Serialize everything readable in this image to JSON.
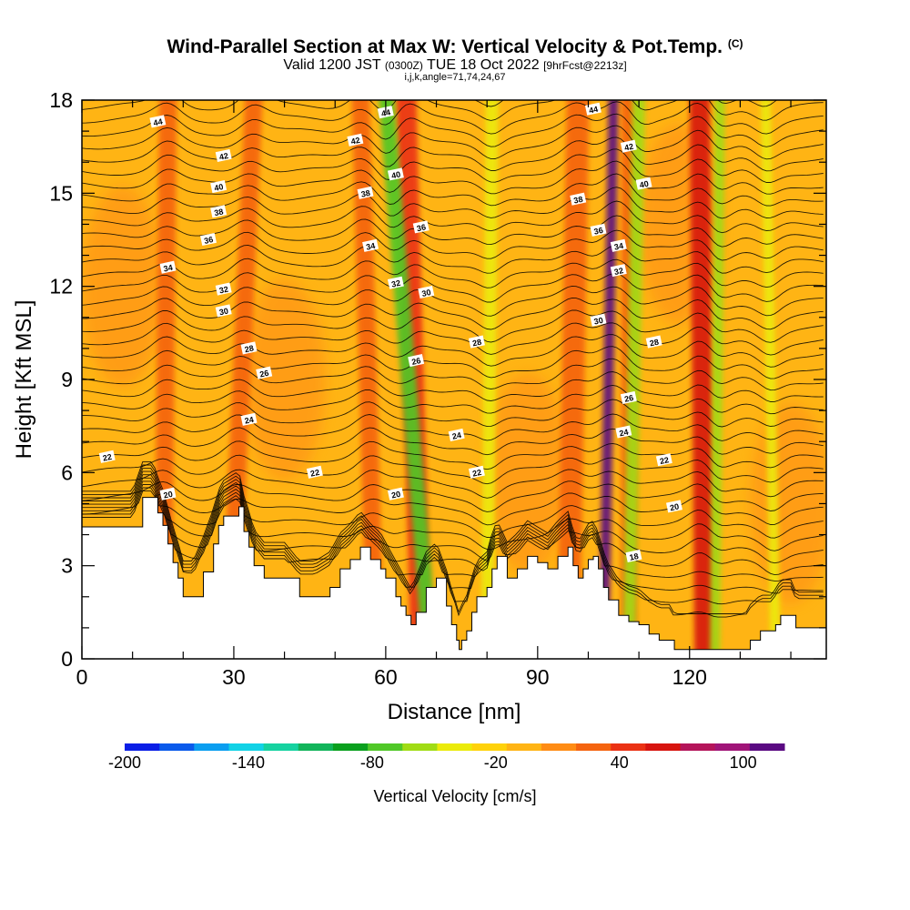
{
  "title": {
    "main": "Wind-Parallel Section at Max W: Vertical Velocity & Pot.Temp.",
    "main_unit": "(C)",
    "valid_prefix": "Valid 1200 JST",
    "valid_utc": "(0300Z)",
    "valid_date": "TUE 18 Oct 2022",
    "forecast": "[9hrFcst@2213z]",
    "params": "i,j,k,angle=71,74,24,67"
  },
  "chart_data": {
    "type": "heatmap",
    "xlabel": "Distance [nm]",
    "ylabel": "Height [Kft MSL]",
    "xlim": [
      0,
      147
    ],
    "ylim": [
      0,
      18
    ],
    "x_ticks": [
      "0",
      "30",
      "60",
      "90",
      "120"
    ],
    "y_ticks": [
      "0",
      "3",
      "6",
      "9",
      "12",
      "15",
      "18"
    ],
    "grid": false,
    "terrain_top_kft": [
      [
        0,
        4.25
      ],
      [
        10,
        4.25
      ],
      [
        12,
        5.2
      ],
      [
        14,
        5.2
      ],
      [
        15,
        4.7
      ],
      [
        16,
        4.3
      ],
      [
        17,
        3.7
      ],
      [
        18,
        3.1
      ],
      [
        19,
        2.6
      ],
      [
        20,
        2.0
      ],
      [
        22,
        2.0
      ],
      [
        24,
        2.8
      ],
      [
        26,
        3.7
      ],
      [
        27,
        4.3
      ],
      [
        28,
        4.6
      ],
      [
        31,
        4.9
      ],
      [
        32,
        4.1
      ],
      [
        33,
        3.6
      ],
      [
        34,
        3.0
      ],
      [
        36,
        2.6
      ],
      [
        40,
        2.6
      ],
      [
        43,
        2.0
      ],
      [
        46,
        2.0
      ],
      [
        49,
        2.3
      ],
      [
        51,
        2.9
      ],
      [
        53,
        3.2
      ],
      [
        55,
        3.6
      ],
      [
        57,
        3.2
      ],
      [
        59,
        2.9
      ],
      [
        60,
        2.6
      ],
      [
        62,
        2.0
      ],
      [
        63,
        1.7
      ],
      [
        64,
        1.4
      ],
      [
        65,
        1.1
      ],
      [
        66,
        1.5
      ],
      [
        68,
        2.3
      ],
      [
        70,
        2.6
      ],
      [
        72,
        1.7
      ],
      [
        73,
        1.1
      ],
      [
        74,
        0.6
      ],
      [
        74.5,
        0.3
      ],
      [
        75,
        0.6
      ],
      [
        76,
        0.9
      ],
      [
        77,
        1.5
      ],
      [
        78,
        2.0
      ],
      [
        80,
        2.3
      ],
      [
        81,
        2.9
      ],
      [
        82,
        3.3
      ],
      [
        84,
        2.6
      ],
      [
        86,
        2.9
      ],
      [
        88,
        3.3
      ],
      [
        90,
        3.1
      ],
      [
        92,
        2.9
      ],
      [
        94,
        3.3
      ],
      [
        96,
        3.6
      ],
      [
        97,
        3.0
      ],
      [
        98,
        2.6
      ],
      [
        99,
        2.9
      ],
      [
        100,
        3.2
      ],
      [
        101,
        3.3
      ],
      [
        102,
        2.9
      ],
      [
        103,
        2.3
      ],
      [
        104,
        1.9
      ],
      [
        106,
        1.4
      ],
      [
        108,
        1.2
      ],
      [
        110,
        1.1
      ],
      [
        112,
        0.8
      ],
      [
        114,
        0.6
      ],
      [
        116,
        0.6
      ],
      [
        117,
        0.3
      ],
      [
        131,
        0.3
      ],
      [
        132,
        0.6
      ],
      [
        134,
        0.9
      ],
      [
        136,
        0.9
      ],
      [
        137,
        1.1
      ],
      [
        138,
        1.4
      ],
      [
        140,
        1.4
      ],
      [
        141,
        1.0
      ],
      [
        147,
        1.0
      ]
    ],
    "updraft_bands_kft": [
      {
        "x_top": 17,
        "x_bottom": 16,
        "w": 3.5,
        "level": "40"
      },
      {
        "x_top": 34,
        "x_bottom": 29,
        "w": 3.5,
        "level": "40"
      },
      {
        "x_top": 55,
        "x_bottom": 58,
        "w": 3.5,
        "level": "40"
      },
      {
        "x_top": 64,
        "x_bottom": 67,
        "w": 4.0,
        "level": "60"
      },
      {
        "x_top": 98,
        "x_bottom": 96,
        "w": 4.5,
        "level": "40"
      },
      {
        "x_top": 105,
        "x_bottom": 103,
        "w": 2.0,
        "level": "100"
      },
      {
        "x_top": 108,
        "x_bottom": 108,
        "w": 3.0,
        "level": "40"
      },
      {
        "x_top": 122,
        "x_bottom": 123,
        "w": 4.0,
        "level": "80"
      }
    ],
    "downdraft_bands_kft": [
      {
        "x_top": 60,
        "x_bottom": 69,
        "w": 3.0,
        "level": "-80"
      },
      {
        "x_top": 81,
        "x_bottom": 80,
        "w": 2.5,
        "level": "-40"
      },
      {
        "x_top": 110,
        "x_bottom": 108,
        "w": 2.5,
        "level": "-60"
      },
      {
        "x_top": 126,
        "x_bottom": 125,
        "w": 2.0,
        "level": "-60"
      },
      {
        "x_top": 135,
        "x_bottom": 137,
        "w": 2.0,
        "level": "-40"
      }
    ],
    "theta_contour_labels": [
      {
        "text": "44",
        "x": 15,
        "y": 17.3
      },
      {
        "text": "42",
        "x": 28,
        "y": 16.2
      },
      {
        "text": "40",
        "x": 27,
        "y": 15.2
      },
      {
        "text": "38",
        "x": 27,
        "y": 14.4
      },
      {
        "text": "36",
        "x": 25,
        "y": 13.5
      },
      {
        "text": "34",
        "x": 17,
        "y": 12.6
      },
      {
        "text": "32",
        "x": 28,
        "y": 11.9
      },
      {
        "text": "30",
        "x": 28,
        "y": 11.2
      },
      {
        "text": "28",
        "x": 33,
        "y": 10.0
      },
      {
        "text": "26",
        "x": 36,
        "y": 9.2
      },
      {
        "text": "24",
        "x": 33,
        "y": 7.7
      },
      {
        "text": "22",
        "x": 5,
        "y": 6.5
      },
      {
        "text": "20",
        "x": 17,
        "y": 5.3
      },
      {
        "text": "22",
        "x": 46,
        "y": 6.0
      },
      {
        "text": "20",
        "x": 62,
        "y": 5.3
      },
      {
        "text": "44",
        "x": 60,
        "y": 17.6
      },
      {
        "text": "42",
        "x": 54,
        "y": 16.7
      },
      {
        "text": "40",
        "x": 62,
        "y": 15.6
      },
      {
        "text": "38",
        "x": 56,
        "y": 15.0
      },
      {
        "text": "36",
        "x": 67,
        "y": 13.9
      },
      {
        "text": "34",
        "x": 57,
        "y": 13.3
      },
      {
        "text": "32",
        "x": 62,
        "y": 12.1
      },
      {
        "text": "30",
        "x": 68,
        "y": 11.8
      },
      {
        "text": "28",
        "x": 78,
        "y": 10.2
      },
      {
        "text": "26",
        "x": 66,
        "y": 9.6
      },
      {
        "text": "24",
        "x": 74,
        "y": 7.2
      },
      {
        "text": "22",
        "x": 78,
        "y": 6.0
      },
      {
        "text": "44",
        "x": 101,
        "y": 17.7
      },
      {
        "text": "42",
        "x": 108,
        "y": 16.5
      },
      {
        "text": "40",
        "x": 111,
        "y": 15.3
      },
      {
        "text": "38",
        "x": 98,
        "y": 14.8
      },
      {
        "text": "36",
        "x": 102,
        "y": 13.8
      },
      {
        "text": "34",
        "x": 106,
        "y": 13.3
      },
      {
        "text": "32",
        "x": 106,
        "y": 12.5
      },
      {
        "text": "30",
        "x": 102,
        "y": 10.9
      },
      {
        "text": "28",
        "x": 113,
        "y": 10.2
      },
      {
        "text": "26",
        "x": 108,
        "y": 8.4
      },
      {
        "text": "24",
        "x": 107,
        "y": 7.3
      },
      {
        "text": "22",
        "x": 115,
        "y": 6.4
      },
      {
        "text": "20",
        "x": 117,
        "y": 4.9
      },
      {
        "text": "18",
        "x": 109,
        "y": 3.3
      }
    ],
    "colorbar": {
      "label": "Vertical Velocity [cm/s]",
      "tick_labels": [
        "-200",
        "-140",
        "-80",
        "-20",
        "40",
        "100"
      ],
      "colors": [
        "#0a1ee6",
        "#0a5aeb",
        "#0a9ef0",
        "#12d2e6",
        "#16d2a0",
        "#12b45a",
        "#0aa01e",
        "#50c828",
        "#a0dc14",
        "#ebeb0a",
        "#ffd20a",
        "#ffb414",
        "#ff8c14",
        "#f5640f",
        "#eb3214",
        "#d7140f",
        "#b4145a",
        "#a01478",
        "#5a0a82"
      ]
    }
  }
}
